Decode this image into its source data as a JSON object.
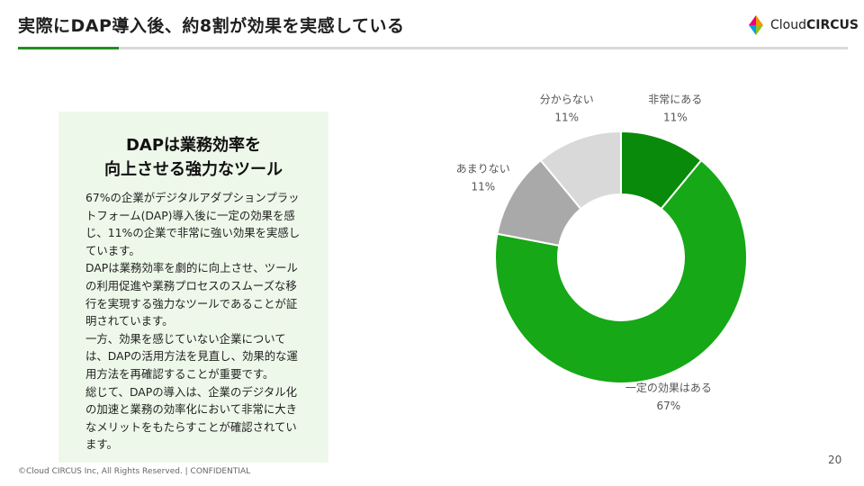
{
  "slide": {
    "title": "実際にDAP導入後、約8割が効果を実感している",
    "footer": "©Cloud CIRCUS Inc, All Rights Reserved. | CONFIDENTIAL",
    "page_number": "20"
  },
  "logo": {
    "text_light": "Cloud",
    "text_bold": "CIRCUS",
    "colors": [
      "#e5007f",
      "#f39800",
      "#00a0e9",
      "#8fc31f"
    ]
  },
  "panel": {
    "heading_line1": "DAPは業務効率を",
    "heading_line2": "向上させる強力なツール",
    "paragraphs": [
      "67%の企業がデジタルアダプションプラットフォーム(DAP)導入後に一定の効果を感じ、11%の企業で非常に強い効果を実感しています。",
      "DAPは業務効率を劇的に向上させ、ツールの利用促進や業務プロセスのスムーズな移行を実現する強力なツールであることが証明されています。",
      "一方、効果を感じていない企業については、DAPの活用方法を見直し、効果的な運用方法を再確認することが重要です。",
      "総じて、DAPの導入は、企業のデジタル化の加速と業務の効率化において非常に大きなメリットをもたらすことが確認されています。"
    ]
  },
  "chart_data": {
    "type": "pie",
    "style": "donut",
    "title": "",
    "start": "12 o'clock, clockwise",
    "slices": [
      {
        "label": "非常にある",
        "value": 11,
        "value_label": "11%",
        "color": "#0a8a0a"
      },
      {
        "label": "一定の効果はある",
        "value": 67,
        "value_label": "67%",
        "color": "#16a816"
      },
      {
        "label": "あまりない",
        "value": 11,
        "value_label": "11%",
        "color": "#a9a9a9"
      },
      {
        "label": "分からない",
        "value": 11,
        "value_label": "11%",
        "color": "#d9d9d9"
      }
    ]
  }
}
